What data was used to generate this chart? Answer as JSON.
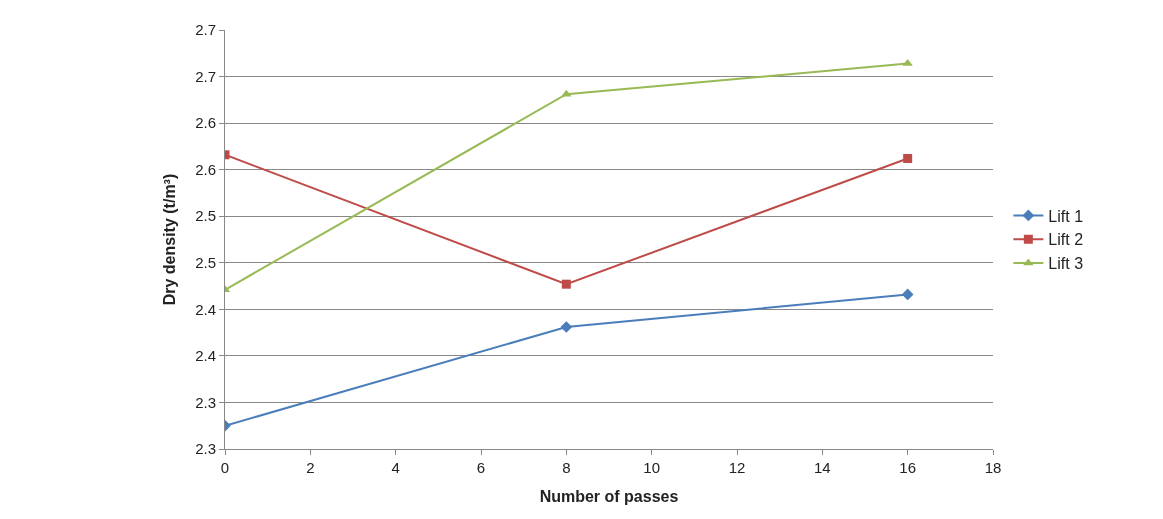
{
  "chart_data": {
    "type": "line",
    "xlabel": "Number of passes",
    "ylabel": "Dry density (t/m³)",
    "x": [
      0,
      8,
      16
    ],
    "series": [
      {
        "name": "Lift 1",
        "color": "#4a7ebb",
        "marker": "diamond",
        "values": [
          2.275,
          2.381,
          2.416
        ]
      },
      {
        "name": "Lift 2",
        "color": "#be4b48",
        "marker": "square",
        "values": [
          2.566,
          2.427,
          2.562
        ]
      },
      {
        "name": "Lift 3",
        "color": "#98b954",
        "marker": "triangle",
        "values": [
          2.421,
          2.631,
          2.664
        ]
      }
    ],
    "xlim": [
      0,
      18
    ],
    "xticks": [
      0,
      2,
      4,
      6,
      8,
      10,
      12,
      14,
      16,
      18
    ],
    "ylim": [
      2.25,
      2.7
    ],
    "yticks": [
      {
        "value": 2.25,
        "label": "2.3"
      },
      {
        "value": 2.3,
        "label": "2.3"
      },
      {
        "value": 2.35,
        "label": "2.4"
      },
      {
        "value": 2.4,
        "label": "2.4"
      },
      {
        "value": 2.45,
        "label": "2.5"
      },
      {
        "value": 2.5,
        "label": "2.5"
      },
      {
        "value": 2.55,
        "label": "2.6"
      },
      {
        "value": 2.6,
        "label": "2.6"
      },
      {
        "value": 2.65,
        "label": "2.7"
      },
      {
        "value": 2.7,
        "label": "2.7"
      }
    ],
    "grid": "y",
    "legend": "right",
    "line_style": "solid"
  }
}
